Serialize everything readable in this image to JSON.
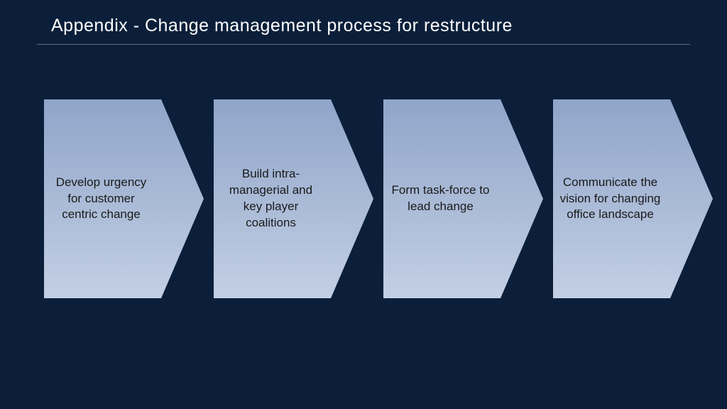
{
  "slide": {
    "background_color": "#0b1f3a",
    "title": "Appendix - Change management process for restructure",
    "title_color": "#ffffff",
    "title_fontsize": 25,
    "divider_color": "#5a6d85"
  },
  "flow": {
    "type": "process-chevron",
    "arrow_count": 4,
    "arrow_body_width": 165,
    "arrow_tip_width": 60,
    "arrow_height": 280,
    "gap": 14,
    "gradient_top": "#8fa5c9",
    "gradient_bottom": "#c3cfe4",
    "label_color": "#1a1a1a",
    "label_fontsize": 17,
    "steps": [
      {
        "label": "Develop urgency for customer centric change"
      },
      {
        "label": "Build intra-managerial and key player coalitions"
      },
      {
        "label": "Form task-force to lead change"
      },
      {
        "label": "Communicate the vision for changing office landscape"
      }
    ]
  }
}
